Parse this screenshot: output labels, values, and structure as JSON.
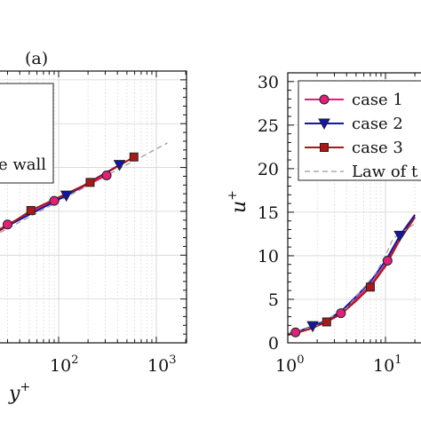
{
  "chart_data": [
    {
      "type": "line",
      "panel_label": "(a)",
      "xscale": "log",
      "xlabel": "y+",
      "xlabel_main": "y",
      "xlabel_sup": "+",
      "xticks": [
        {
          "base": "10",
          "exp": "2",
          "value": 100
        },
        {
          "base": "10",
          "exp": "3",
          "value": 1000
        }
      ],
      "xlim_visible": [
        4,
        2000
      ],
      "ylim": [
        0,
        31
      ],
      "legend_fragment": "e wall",
      "grid": true,
      "series": [
        {
          "color": "#e0207a",
          "marker": "circle",
          "x": [
            8,
            15,
            30,
            90,
            310
          ],
          "y": [
            9,
            11.5,
            13.5,
            16.2,
            19.1
          ]
        },
        {
          "color": "#1515a8",
          "marker": "triangle-down",
          "x": [
            15,
            120,
            420
          ],
          "y": [
            11.6,
            16.8,
            20.3
          ]
        },
        {
          "color": "#a81a1a",
          "marker": "square",
          "x": [
            8,
            52,
            210,
            590
          ],
          "y": [
            9.2,
            15.1,
            18.3,
            21.2
          ]
        }
      ],
      "reference": {
        "color": "#999999",
        "style": "dashed",
        "x": [
          4,
          1300
        ],
        "y": [
          7.8,
          22.8
        ]
      }
    },
    {
      "type": "line",
      "xscale": "log",
      "ylabel": "u+",
      "ylabel_main": "u",
      "ylabel_sup": "+",
      "xticks": [
        {
          "base": "10",
          "exp": "0",
          "value": 1
        },
        {
          "base": "10",
          "exp": "1",
          "value": 10
        }
      ],
      "yticks": [
        "0",
        "5",
        "10",
        "15",
        "20",
        "25",
        "30"
      ],
      "ylim": [
        0,
        31
      ],
      "xlim_visible": [
        1,
        20
      ],
      "legend": [
        "case 1",
        "case 2",
        "case 3",
        "Law of t"
      ],
      "grid": true,
      "series": [
        {
          "name": "case 1",
          "color": "#e0207a",
          "marker": "circle",
          "x": [
            1,
            1.2,
            1.7,
            2.5,
            3.5,
            5,
            7,
            10,
            14,
            20
          ],
          "y": [
            1.0,
            1.2,
            1.7,
            2.5,
            3.4,
            5.0,
            6.6,
            9.0,
            12.0,
            14.5
          ],
          "marker_x": [
            1.2,
            3.5,
            10.5
          ]
        },
        {
          "name": "case 2",
          "color": "#1515a8",
          "marker": "triangle-down",
          "x": [
            1,
            1.2,
            1.7,
            2.5,
            3.5,
            5,
            7,
            10,
            14,
            20
          ],
          "y": [
            1.0,
            1.2,
            1.8,
            2.6,
            3.6,
            5.3,
            7.0,
            9.4,
            12.3,
            14.7
          ],
          "marker_x": [
            1.8,
            14
          ]
        },
        {
          "name": "case 3",
          "color": "#a81a1a",
          "marker": "square",
          "x": [
            1,
            1.2,
            1.7,
            2.5,
            3.5,
            5,
            7,
            10,
            14,
            20
          ],
          "y": [
            0.9,
            1.1,
            1.6,
            2.4,
            3.3,
            4.8,
            6.4,
            8.8,
            11.8,
            14.4
          ],
          "marker_x": [
            2.5,
            7
          ]
        },
        {
          "name": "Law of t",
          "color": "#999999",
          "style": "dashed",
          "x": [
            1,
            2,
            4,
            8,
            10,
            12,
            20
          ],
          "y": [
            1,
            2,
            4,
            8,
            10,
            12,
            13.7
          ]
        }
      ]
    }
  ]
}
